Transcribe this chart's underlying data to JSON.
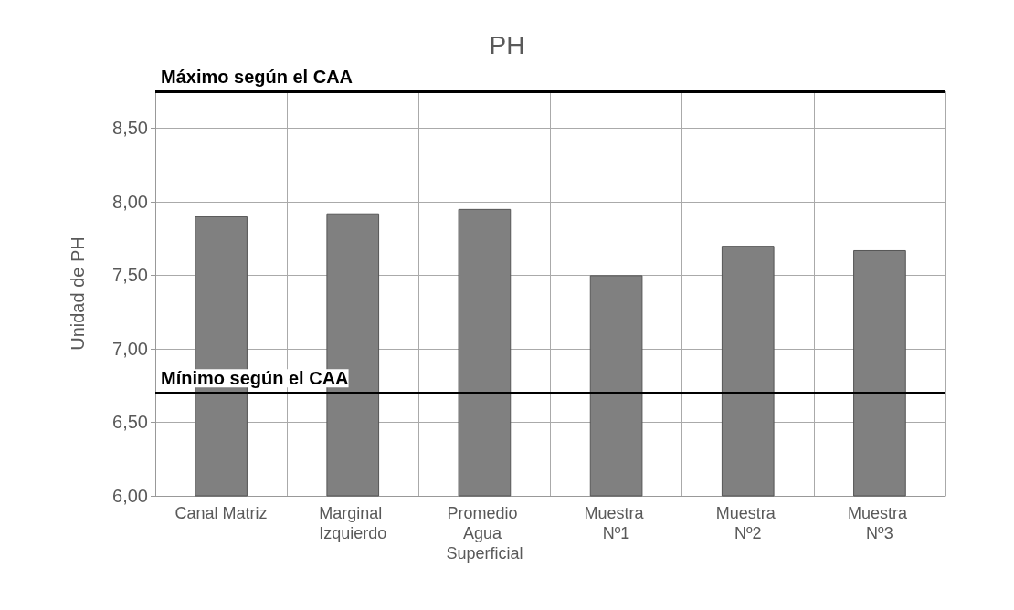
{
  "chart_data": {
    "type": "bar",
    "title": "PH",
    "ylabel": "Unidad de PH",
    "categories": [
      "Canal Matriz",
      "Marginal Izquierdo",
      "Promedio Agua Superficial",
      "Muestra Nº1",
      "Muestra Nº2",
      "Muestra Nº3"
    ],
    "values": [
      7.9,
      7.92,
      7.95,
      7.5,
      7.7,
      7.67
    ],
    "color": "#808080",
    "ylim": [
      6,
      8.75
    ],
    "yticks": [
      {
        "value": 6,
        "label": "6,00"
      },
      {
        "value": 6.5,
        "label": "6,50"
      },
      {
        "value": 7,
        "label": "7,00"
      },
      {
        "value": 7.5,
        "label": "7,50"
      },
      {
        "value": 8,
        "label": "8,00"
      },
      {
        "value": 8.5,
        "label": "8,50"
      }
    ],
    "grid": true,
    "ref_lines": [
      {
        "axis": "y",
        "value": 8.75,
        "label": "Máximo según el CAA",
        "color": "#000000",
        "line_style": "solid"
      },
      {
        "axis": "y",
        "value": 6.7,
        "label": "Mínimo según el CAA",
        "color": "#000000",
        "line_style": "solid"
      }
    ]
  }
}
